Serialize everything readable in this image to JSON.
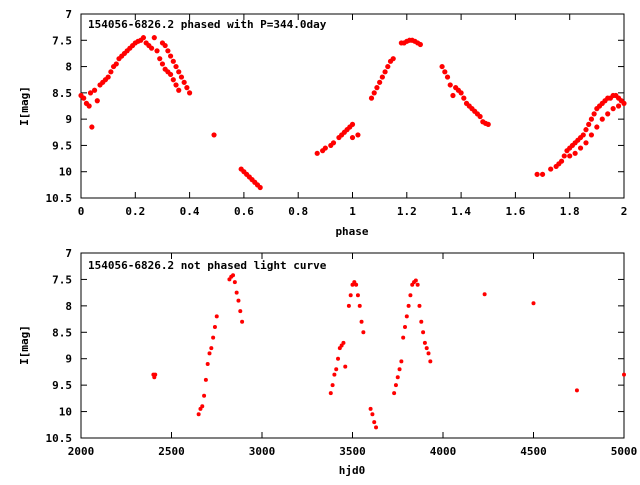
{
  "chart_data": [
    {
      "type": "scatter",
      "title": "154056-6826.2 phased with P=344.0day",
      "xlabel": "phase",
      "ylabel": "I[mag]",
      "xlim": [
        0,
        2
      ],
      "ylim": [
        10.5,
        7
      ],
      "y_inverted": true,
      "grid": false,
      "x_ticks": [
        "0",
        "0.2",
        "0.4",
        "0.6",
        "0.8",
        "1",
        "1.2",
        "1.4",
        "1.6",
        "1.8",
        "2"
      ],
      "y_ticks": [
        "7",
        "7.5",
        "8",
        "8.5",
        "9",
        "9.5",
        "10",
        "10.5"
      ],
      "marker_color": "#ff0000",
      "points": [
        [
          0.0,
          8.55
        ],
        [
          0.01,
          8.6
        ],
        [
          0.02,
          8.7
        ],
        [
          0.03,
          8.75
        ],
        [
          0.035,
          8.5
        ],
        [
          0.04,
          9.15
        ],
        [
          0.05,
          8.45
        ],
        [
          0.06,
          8.65
        ],
        [
          0.07,
          8.35
        ],
        [
          0.08,
          8.3
        ],
        [
          0.09,
          8.25
        ],
        [
          0.1,
          8.2
        ],
        [
          0.11,
          8.1
        ],
        [
          0.12,
          8.0
        ],
        [
          0.13,
          7.95
        ],
        [
          0.14,
          7.85
        ],
        [
          0.15,
          7.8
        ],
        [
          0.16,
          7.75
        ],
        [
          0.17,
          7.7
        ],
        [
          0.18,
          7.65
        ],
        [
          0.19,
          7.6
        ],
        [
          0.2,
          7.55
        ],
        [
          0.21,
          7.52
        ],
        [
          0.22,
          7.5
        ],
        [
          0.23,
          7.45
        ],
        [
          0.24,
          7.55
        ],
        [
          0.25,
          7.6
        ],
        [
          0.26,
          7.65
        ],
        [
          0.27,
          7.45
        ],
        [
          0.28,
          7.7
        ],
        [
          0.29,
          7.85
        ],
        [
          0.3,
          7.95
        ],
        [
          0.31,
          8.05
        ],
        [
          0.32,
          8.1
        ],
        [
          0.33,
          8.15
        ],
        [
          0.34,
          8.25
        ],
        [
          0.35,
          8.35
        ],
        [
          0.36,
          8.45
        ],
        [
          0.3,
          7.55
        ],
        [
          0.31,
          7.6
        ],
        [
          0.32,
          7.7
        ],
        [
          0.33,
          7.8
        ],
        [
          0.34,
          7.9
        ],
        [
          0.35,
          8.0
        ],
        [
          0.36,
          8.1
        ],
        [
          0.37,
          8.2
        ],
        [
          0.38,
          8.3
        ],
        [
          0.39,
          8.4
        ],
        [
          0.4,
          8.5
        ],
        [
          0.49,
          9.3
        ],
        [
          0.59,
          9.95
        ],
        [
          0.6,
          10.0
        ],
        [
          0.61,
          10.05
        ],
        [
          0.62,
          10.1
        ],
        [
          0.63,
          10.15
        ],
        [
          0.64,
          10.2
        ],
        [
          0.65,
          10.25
        ],
        [
          0.66,
          10.3
        ],
        [
          0.87,
          9.65
        ],
        [
          0.89,
          9.6
        ],
        [
          0.9,
          9.55
        ],
        [
          0.92,
          9.5
        ],
        [
          0.93,
          9.45
        ],
        [
          0.95,
          9.35
        ],
        [
          0.96,
          9.3
        ],
        [
          0.97,
          9.25
        ],
        [
          0.98,
          9.2
        ],
        [
          0.99,
          9.15
        ],
        [
          1.0,
          9.1
        ],
        [
          1.0,
          9.35
        ],
        [
          1.02,
          9.3
        ],
        [
          1.07,
          8.6
        ],
        [
          1.08,
          8.5
        ],
        [
          1.09,
          8.4
        ],
        [
          1.1,
          8.3
        ],
        [
          1.11,
          8.2
        ],
        [
          1.12,
          8.1
        ],
        [
          1.13,
          8.0
        ],
        [
          1.14,
          7.9
        ],
        [
          1.15,
          7.85
        ],
        [
          1.18,
          7.55
        ],
        [
          1.19,
          7.55
        ],
        [
          1.2,
          7.52
        ],
        [
          1.21,
          7.5
        ],
        [
          1.22,
          7.5
        ],
        [
          1.23,
          7.52
        ],
        [
          1.24,
          7.55
        ],
        [
          1.25,
          7.58
        ],
        [
          1.33,
          8.0
        ],
        [
          1.34,
          8.1
        ],
        [
          1.35,
          8.2
        ],
        [
          1.36,
          8.35
        ],
        [
          1.37,
          8.55
        ],
        [
          1.38,
          8.4
        ],
        [
          1.39,
          8.45
        ],
        [
          1.4,
          8.5
        ],
        [
          1.41,
          8.6
        ],
        [
          1.42,
          8.7
        ],
        [
          1.43,
          8.75
        ],
        [
          1.44,
          8.8
        ],
        [
          1.45,
          8.85
        ],
        [
          1.46,
          8.9
        ],
        [
          1.47,
          8.95
        ],
        [
          1.48,
          9.05
        ],
        [
          1.49,
          9.08
        ],
        [
          1.5,
          9.1
        ],
        [
          1.68,
          10.05
        ],
        [
          1.7,
          10.05
        ],
        [
          1.73,
          9.95
        ],
        [
          1.75,
          9.9
        ],
        [
          1.76,
          9.85
        ],
        [
          1.77,
          9.8
        ],
        [
          1.78,
          9.7
        ],
        [
          1.79,
          9.6
        ],
        [
          1.8,
          9.55
        ],
        [
          1.81,
          9.5
        ],
        [
          1.82,
          9.45
        ],
        [
          1.83,
          9.4
        ],
        [
          1.84,
          9.35
        ],
        [
          1.85,
          9.3
        ],
        [
          1.86,
          9.2
        ],
        [
          1.87,
          9.1
        ],
        [
          1.88,
          9.0
        ],
        [
          1.89,
          8.9
        ],
        [
          1.9,
          8.8
        ],
        [
          1.91,
          8.75
        ],
        [
          1.92,
          8.7
        ],
        [
          1.93,
          8.65
        ],
        [
          1.94,
          8.6
        ],
        [
          1.95,
          8.6
        ],
        [
          1.96,
          8.55
        ],
        [
          1.97,
          8.55
        ],
        [
          1.98,
          8.6
        ],
        [
          1.99,
          8.65
        ],
        [
          2.0,
          8.7
        ],
        [
          1.8,
          9.7
        ],
        [
          1.82,
          9.65
        ],
        [
          1.84,
          9.55
        ],
        [
          1.86,
          9.45
        ],
        [
          1.88,
          9.3
        ],
        [
          1.9,
          9.15
        ],
        [
          1.92,
          9.0
        ],
        [
          1.94,
          8.9
        ],
        [
          1.96,
          8.8
        ],
        [
          1.98,
          8.75
        ]
      ]
    },
    {
      "type": "scatter",
      "title": "154056-6826.2 not phased light curve",
      "xlabel": "hjd0",
      "ylabel": "I[mag]",
      "xlim": [
        2000,
        5000
      ],
      "ylim": [
        10.5,
        7
      ],
      "y_inverted": true,
      "grid": false,
      "x_ticks": [
        "2000",
        "2500",
        "3000",
        "3500",
        "4000",
        "4500",
        "5000"
      ],
      "y_ticks": [
        "7",
        "7.5",
        "8",
        "8.5",
        "9",
        "9.5",
        "10",
        "10.5"
      ],
      "marker_color": "#ff0000",
      "points": [
        [
          2400,
          9.3
        ],
        [
          2405,
          9.35
        ],
        [
          2410,
          9.3
        ],
        [
          2650,
          10.05
        ],
        [
          2660,
          9.95
        ],
        [
          2670,
          9.9
        ],
        [
          2680,
          9.7
        ],
        [
          2690,
          9.4
        ],
        [
          2700,
          9.1
        ],
        [
          2710,
          8.9
        ],
        [
          2720,
          8.8
        ],
        [
          2730,
          8.6
        ],
        [
          2740,
          8.4
        ],
        [
          2750,
          8.2
        ],
        [
          2820,
          7.5
        ],
        [
          2830,
          7.45
        ],
        [
          2840,
          7.42
        ],
        [
          2850,
          7.55
        ],
        [
          2860,
          7.75
        ],
        [
          2870,
          7.9
        ],
        [
          2880,
          8.1
        ],
        [
          2890,
          8.3
        ],
        [
          3380,
          9.65
        ],
        [
          3390,
          9.5
        ],
        [
          3400,
          9.3
        ],
        [
          3410,
          9.2
        ],
        [
          3420,
          9.0
        ],
        [
          3430,
          8.8
        ],
        [
          3440,
          8.75
        ],
        [
          3450,
          8.7
        ],
        [
          3460,
          9.15
        ],
        [
          3480,
          8.0
        ],
        [
          3490,
          7.8
        ],
        [
          3500,
          7.6
        ],
        [
          3510,
          7.55
        ],
        [
          3520,
          7.6
        ],
        [
          3530,
          7.8
        ],
        [
          3540,
          8.0
        ],
        [
          3550,
          8.3
        ],
        [
          3560,
          8.5
        ],
        [
          3600,
          9.95
        ],
        [
          3610,
          10.05
        ],
        [
          3620,
          10.2
        ],
        [
          3630,
          10.3
        ],
        [
          3730,
          9.65
        ],
        [
          3740,
          9.5
        ],
        [
          3750,
          9.35
        ],
        [
          3760,
          9.2
        ],
        [
          3770,
          9.05
        ],
        [
          3780,
          8.6
        ],
        [
          3790,
          8.4
        ],
        [
          3800,
          8.2
        ],
        [
          3810,
          8.0
        ],
        [
          3820,
          7.8
        ],
        [
          3830,
          7.6
        ],
        [
          3840,
          7.55
        ],
        [
          3850,
          7.52
        ],
        [
          3860,
          7.6
        ],
        [
          3870,
          8.0
        ],
        [
          3880,
          8.3
        ],
        [
          3890,
          8.5
        ],
        [
          3900,
          8.7
        ],
        [
          3910,
          8.8
        ],
        [
          3920,
          8.9
        ],
        [
          3930,
          9.05
        ],
        [
          4230,
          7.78
        ],
        [
          4500,
          7.95
        ],
        [
          4740,
          9.6
        ],
        [
          5000,
          9.3
        ]
      ]
    }
  ]
}
